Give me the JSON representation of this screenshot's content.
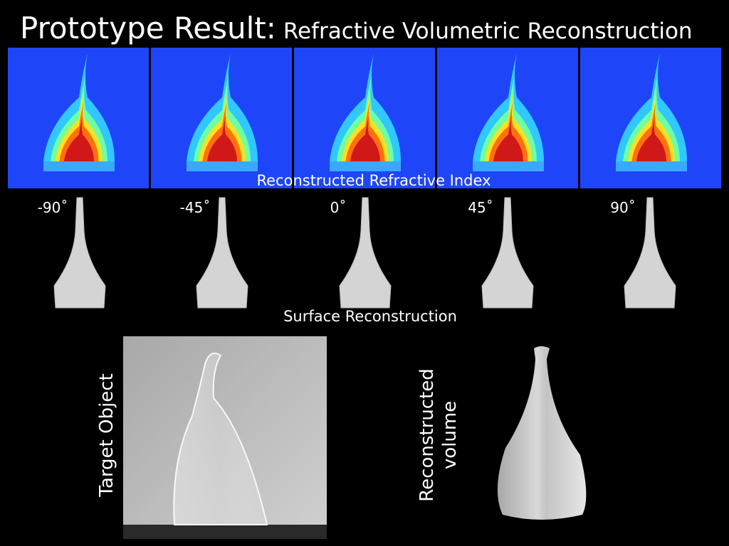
{
  "header": {
    "title": "Prototype Result:",
    "subtitle": "Refractive Volumetric Reconstruction"
  },
  "refractive_index": {
    "caption": "Reconstructed Refractive Index"
  },
  "surfaces": {
    "angles": [
      "-90˚",
      "-45˚",
      "0˚",
      "45˚",
      "90˚"
    ],
    "caption": "Surface Reconstruction"
  },
  "bottom": {
    "target_label": "Target Object",
    "volume_label": [
      "Reconstructed",
      "volume"
    ]
  }
}
